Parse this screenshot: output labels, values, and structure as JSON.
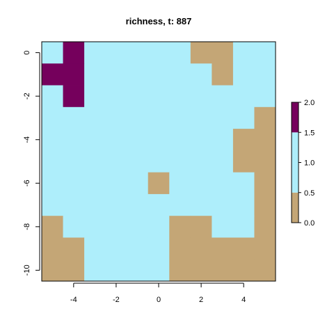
{
  "chart_data": {
    "type": "heatmap",
    "title": "richness, t: 887",
    "xlabel": "",
    "ylabel": "",
    "x_ticks": [
      -4,
      -2,
      0,
      2,
      4
    ],
    "y_ticks": [
      0,
      -2,
      -4,
      -6,
      -8,
      -10
    ],
    "xlim": [
      -5.5,
      5.5
    ],
    "ylim": [
      -10.5,
      0.5
    ],
    "grid_x": [
      -5,
      -4,
      -3,
      -2,
      -1,
      0,
      1,
      2,
      3,
      4,
      5
    ],
    "grid_y": [
      0,
      -1,
      -2,
      -3,
      -4,
      -5,
      -6,
      -7,
      -8,
      -9,
      -10
    ],
    "values": [
      [
        1,
        2,
        1,
        1,
        1,
        1,
        1,
        0,
        0,
        1,
        1
      ],
      [
        2,
        2,
        1,
        1,
        1,
        1,
        1,
        1,
        0,
        1,
        1
      ],
      [
        1,
        2,
        1,
        1,
        1,
        1,
        1,
        1,
        1,
        1,
        1
      ],
      [
        1,
        1,
        1,
        1,
        1,
        1,
        1,
        1,
        1,
        1,
        0
      ],
      [
        1,
        1,
        1,
        1,
        1,
        1,
        1,
        1,
        1,
        0,
        0
      ],
      [
        1,
        1,
        1,
        1,
        1,
        1,
        1,
        1,
        1,
        0,
        0
      ],
      [
        1,
        1,
        1,
        1,
        1,
        0,
        1,
        1,
        1,
        1,
        0
      ],
      [
        1,
        1,
        1,
        1,
        1,
        1,
        1,
        1,
        1,
        1,
        0
      ],
      [
        0,
        1,
        1,
        1,
        1,
        1,
        0,
        0,
        1,
        1,
        0
      ],
      [
        0,
        0,
        1,
        1,
        1,
        1,
        0,
        0,
        0,
        0,
        0
      ],
      [
        0,
        0,
        1,
        1,
        1,
        1,
        0,
        0,
        0,
        0,
        0
      ]
    ],
    "colorbar": {
      "breaks": [
        0,
        0.5,
        1.5,
        2
      ],
      "colors": [
        "#c4a676",
        "#aeeefb",
        "#75005c"
      ],
      "tick_labels": [
        "0.0",
        "0.5",
        "1.0",
        "1.5",
        "2.0"
      ],
      "tick_values": [
        0,
        0.5,
        1,
        1.5,
        2
      ]
    }
  }
}
